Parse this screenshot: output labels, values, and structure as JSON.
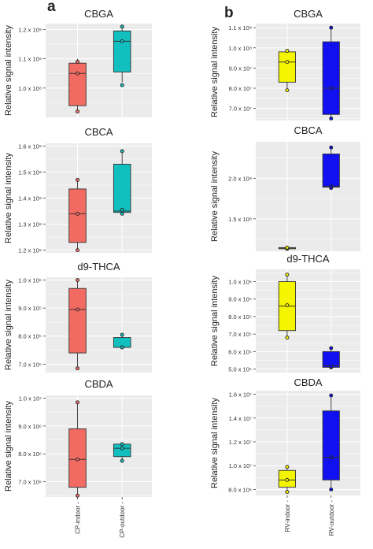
{
  "figure": {
    "panel_a_label": "a",
    "panel_b_label": "b",
    "ylabel": "Relative signal intensity"
  },
  "colors": {
    "CP-indoor": "#f26b63",
    "CP-outdoor": "#12bfbf",
    "RV-indoor": "#f5f500",
    "RV-outdoor": "#1010f0",
    "plot_background": "#ebebeb",
    "grid": "#ffffff"
  },
  "chart_data": [
    {
      "type": "box",
      "title": "CBGA",
      "ylabel": "Relative signal intensity",
      "ylim": [
        90000000.0,
        122000000.0
      ],
      "yticks": [
        100000000.0,
        110000000.0,
        120000000.0
      ],
      "ytick_labels": [
        "1.0 x 10⁸",
        "1.1 x 10⁸",
        "1.2 x 10⁸"
      ],
      "categories": [
        "CP-indoor",
        "CP-outdoor"
      ],
      "boxes": [
        {
          "name": "CP-indoor",
          "min": 92000000.0,
          "q1": 94000000.0,
          "median": 105000000.0,
          "q3": 108500000.0,
          "max": 110000000.0,
          "points": [
            92000000.0,
            105000000.0,
            109000000.0
          ]
        },
        {
          "name": "CP-outdoor",
          "min": 102000000.0,
          "q1": 105500000.0,
          "median": 116000000.0,
          "q3": 119500000.0,
          "max": 121000000.0,
          "points": [
            101000000.0,
            116000000.0,
            121000000.0
          ]
        }
      ]
    },
    {
      "type": "box",
      "title": "CBCA",
      "ylabel": "Relative signal intensity",
      "ylim": [
        119000000.0,
        161000000.0
      ],
      "yticks": [
        120000000.0,
        130000000.0,
        140000000.0,
        150000000.0,
        160000000.0
      ],
      "ytick_labels": [
        "1.2 x 10⁸",
        "1.3 x 10⁸",
        "1.4 x 10⁸",
        "1.5 x 10⁸",
        "1.6 x 10⁸"
      ],
      "categories": [
        "CP-indoor",
        "CP-outdoor"
      ],
      "boxes": [
        {
          "name": "CP-indoor",
          "min": 120000000.0,
          "q1": 123000000.0,
          "median": 134000000.0,
          "q3": 143500000.0,
          "max": 147000000.0,
          "points": [
            120000000.0,
            134000000.0,
            147000000.0
          ]
        },
        {
          "name": "CP-outdoor",
          "min": 134000000.0,
          "q1": 134500000.0,
          "median": 135000000.0,
          "q3": 153000000.0,
          "max": 158000000.0,
          "points": [
            134000000.0,
            135500000.0,
            158000000.0
          ]
        }
      ]
    },
    {
      "type": "box",
      "title": "d9-THCA",
      "ylabel": "Relative signal intensity",
      "ylim": [
        670000.0,
        1010000.0
      ],
      "yticks": [
        700000.0,
        800000.0,
        900000.0,
        1000000.0
      ],
      "ytick_labels": [
        "7.0 x 10⁵",
        "8.0 x 10⁵",
        "9.0 x 10⁵",
        "1.0 x 10⁶"
      ],
      "categories": [
        "CP-indoor",
        "CP-outdoor"
      ],
      "boxes": [
        {
          "name": "CP-indoor",
          "min": 685000.0,
          "q1": 740000.0,
          "median": 895000.0,
          "q3": 970000.0,
          "max": 1000000.0,
          "points": [
            685000.0,
            895000.0,
            1000000.0
          ]
        },
        {
          "name": "CP-outdoor",
          "min": 760000.0,
          "q1": 760000.0,
          "median": 760000.0,
          "q3": 795000.0,
          "max": 805000.0,
          "points": [
            760000.0,
            760000.0,
            805000.0
          ]
        }
      ]
    },
    {
      "type": "box",
      "title": "CBDA",
      "ylabel": "Relative signal intensity",
      "ylim": [
        6450000.0,
        10100000.0
      ],
      "yticks": [
        7000000.0,
        8000000.0,
        9000000.0,
        10000000.0
      ],
      "ytick_labels": [
        "7.0 x 10⁶",
        "8.0 x 10⁶",
        "9.0 x 10⁶",
        "1.0 x 10⁷"
      ],
      "categories": [
        "CP-indoor",
        "CP-outdoor"
      ],
      "boxes": [
        {
          "name": "CP-indoor",
          "min": 6500000.0,
          "q1": 6800000.0,
          "median": 7800000.0,
          "q3": 8900000.0,
          "max": 9850000.0,
          "points": [
            6500000.0,
            7800000.0,
            9850000.0
          ]
        },
        {
          "name": "CP-outdoor",
          "min": 7750000.0,
          "q1": 7900000.0,
          "median": 8200000.0,
          "q3": 8350000.0,
          "max": 8400000.0,
          "points": [
            7750000.0,
            8200000.0,
            8350000.0
          ]
        }
      ]
    },
    {
      "type": "box",
      "title": "CBGA",
      "ylabel": "Relative signal intensity",
      "ylim": [
        64000000.0,
        112000000.0
      ],
      "yticks": [
        70000000.0,
        80000000.0,
        90000000.0,
        100000000.0,
        110000000.0
      ],
      "ytick_labels": [
        "7.0 x 10⁷",
        "8.0 x 10⁷",
        "9.0 x 10⁷",
        "1.0 x 10⁸",
        "1.1 x 10⁸"
      ],
      "categories": [
        "RV-indoor",
        "RV-outdoor"
      ],
      "boxes": [
        {
          "name": "RV-indoor",
          "min": 79000000.0,
          "q1": 83000000.0,
          "median": 93000000.0,
          "q3": 98000000.0,
          "max": 99000000.0,
          "points": [
            79000000.0,
            93000000.0,
            98500000.0
          ]
        },
        {
          "name": "RV-outdoor",
          "min": 65000000.0,
          "q1": 67000000.0,
          "median": 80000000.0,
          "q3": 103000000.0,
          "max": 110000000.0,
          "points": [
            65000000.0,
            80000000.0,
            110000000.0
          ]
        }
      ]
    },
    {
      "type": "box",
      "title": "CBCA",
      "ylabel": "Relative signal intensity",
      "ylim": [
        110000000.0,
        245000000.0
      ],
      "yticks": [
        150000000.0,
        200000000.0
      ],
      "ytick_labels": [
        "1.5 x 10⁸",
        "2.0 x 10⁸"
      ],
      "categories": [
        "RV-indoor",
        "RV-outdoor"
      ],
      "boxes": [
        {
          "name": "RV-indoor",
          "min": 113000000.0,
          "q1": 113500000.0,
          "median": 114000000.0,
          "q3": 114500000.0,
          "max": 115000000.0,
          "points": [
            113000000.0,
            114000000.0,
            114500000.0
          ]
        },
        {
          "name": "RV-outdoor",
          "min": 188000000.0,
          "q1": 189000000.0,
          "median": 190000000.0,
          "q3": 230000000.0,
          "max": 238000000.0,
          "points": [
            188000000.0,
            190000000.0,
            238000000.0
          ]
        }
      ]
    },
    {
      "type": "box",
      "title": "d9-THCA",
      "ylabel": "Relative signal intensity",
      "ylim": [
        480000.0,
        1070000.0
      ],
      "yticks": [
        500000.0,
        600000.0,
        700000.0,
        800000.0,
        900000.0,
        1000000.0
      ],
      "ytick_labels": [
        "5.0 x 10⁵",
        "6.0 x 10⁵",
        "7.0 x 10⁵",
        "8.0 x 10⁵",
        "9.0 x 10⁵",
        "1.0 x 10⁶"
      ],
      "categories": [
        "RV-indoor",
        "RV-outdoor"
      ],
      "boxes": [
        {
          "name": "RV-indoor",
          "min": 680000.0,
          "q1": 720000.0,
          "median": 860000.0,
          "q3": 1000000.0,
          "max": 1040000.0,
          "points": [
            680000.0,
            865000.0,
            1040000.0
          ]
        },
        {
          "name": "RV-outdoor",
          "min": 510000.0,
          "q1": 510000.0,
          "median": 520000.0,
          "q3": 600000.0,
          "max": 620000.0,
          "points": [
            510000.0,
            515000.0,
            620000.0
          ]
        }
      ]
    },
    {
      "type": "box",
      "title": "CBDA",
      "ylabel": "Relative signal intensity",
      "ylim": [
        7500000.0,
        16300000.0
      ],
      "yticks": [
        8000000.0,
        10000000.0,
        12000000.0,
        14000000.0,
        16000000.0
      ],
      "ytick_labels": [
        "8.0 x 10⁶",
        "1.0 x 10⁷",
        "1.2 x 10⁷",
        "1.4 x 10⁷",
        "1.6 x 10⁷"
      ],
      "categories": [
        "RV-indoor",
        "RV-outdoor"
      ],
      "boxes": [
        {
          "name": "RV-indoor",
          "min": 7800000.0,
          "q1": 8200000.0,
          "median": 8800000.0,
          "q3": 9600000.0,
          "max": 9900000.0,
          "points": [
            7800000.0,
            8800000.0,
            9900000.0
          ]
        },
        {
          "name": "RV-outdoor",
          "min": 8000000.0,
          "q1": 8800000.0,
          "median": 10700000.0,
          "q3": 14600000.0,
          "max": 15900000.0,
          "points": [
            8000000.0,
            10700000.0,
            15900000.0
          ]
        }
      ]
    }
  ]
}
